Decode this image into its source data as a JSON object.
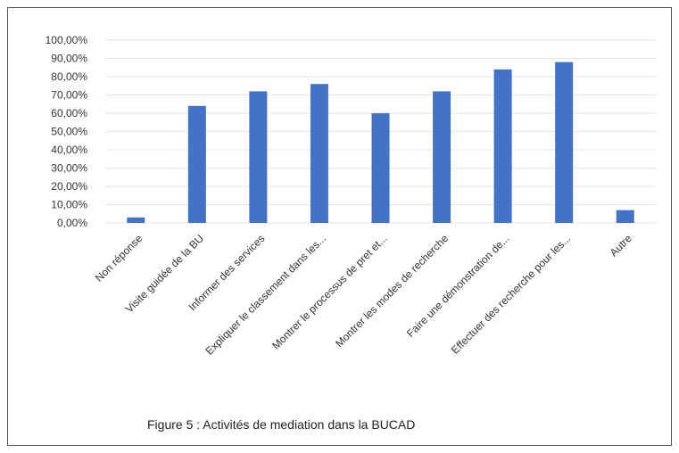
{
  "chart_data": {
    "type": "bar",
    "title": "Figure 5 : Activités de mediation dans la BUCAD",
    "xlabel": "",
    "ylabel": "",
    "ylim": [
      0,
      100
    ],
    "grid": true,
    "legend": "none",
    "y_ticks": [
      "0,00%",
      "10,00%",
      "20,00%",
      "30,00%",
      "40,00%",
      "50,00%",
      "60,00%",
      "70,00%",
      "80,00%",
      "90,00%",
      "100,00%"
    ],
    "categories": [
      "Non réponse",
      "Visite guidée de la BU",
      "Informer des services",
      "Expliquer le classement dans les...",
      "Montrer le processus de pret et...",
      "Montrer les modes de recherche",
      "Faire une démonstration de...",
      "Effectuer des recherche pour les...",
      "Autre"
    ],
    "values": [
      3,
      64,
      72,
      76,
      60,
      72,
      84,
      88,
      7
    ],
    "bar_color": "#4472c4"
  }
}
